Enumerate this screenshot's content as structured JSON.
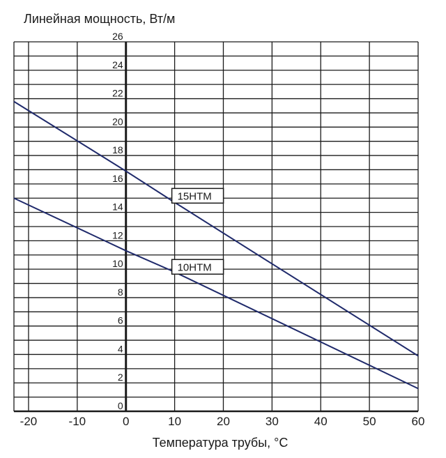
{
  "chart_data": {
    "type": "line",
    "ylabel": "Линейная мощность, Вт/м",
    "xlabel": "Температура трубы, °C",
    "xlim": [
      -23,
      60
    ],
    "ylim": [
      0,
      26
    ],
    "x_ticks": [
      -20,
      -10,
      0,
      10,
      20,
      30,
      40,
      50,
      60
    ],
    "y_ticks": [
      0,
      2,
      4,
      6,
      8,
      10,
      12,
      14,
      16,
      18,
      20,
      22,
      24,
      26
    ],
    "grid": true,
    "series": [
      {
        "name": "15HTM",
        "x": [
          -23,
          0,
          10,
          60
        ],
        "y": [
          21.8,
          16.9,
          14.7,
          3.9
        ]
      },
      {
        "name": "10HTM",
        "x": [
          -23,
          0,
          10,
          60
        ],
        "y": [
          15.0,
          11.3,
          9.8,
          1.6
        ]
      }
    ]
  }
}
